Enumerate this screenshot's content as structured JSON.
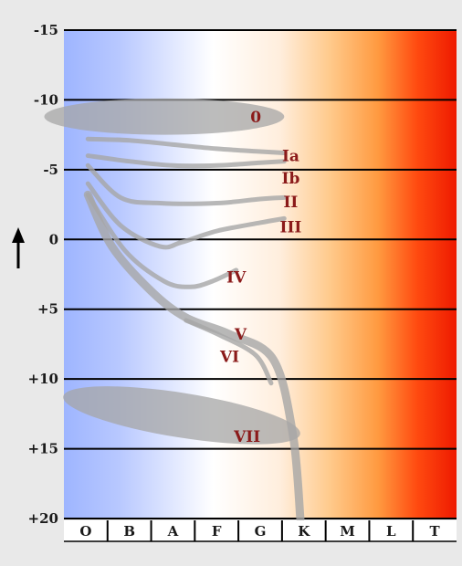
{
  "chart_data": {
    "type": "line",
    "title": "",
    "xlabel": "",
    "ylabel": "",
    "y_axis_arrow": "up",
    "x_categories": [
      "O",
      "B",
      "A",
      "F",
      "G",
      "K",
      "M",
      "L",
      "T"
    ],
    "y_ticks": [
      "-15",
      "-10",
      "-5",
      "0",
      "+5",
      "+10",
      "+15",
      "+20"
    ],
    "y_tick_values": [
      -15,
      -10,
      -5,
      0,
      5,
      10,
      15,
      20
    ],
    "ylim": [
      -15,
      20
    ],
    "y_inverted": true,
    "grid": "horizontal",
    "gradient_colors": [
      "#9eb5ff",
      "#b8c8ff",
      "#ffffff",
      "#ffeedd",
      "#ffc98a",
      "#ff9a40",
      "#ff4a10",
      "#ee1a00"
    ],
    "band_color": "#a6a6a6",
    "class_label_color": "#8b1a1a",
    "regions": [
      {
        "name": "0",
        "kind": "ellipse",
        "cx": 1.8,
        "cy": -8.8,
        "rx": 2.75,
        "ry": 1.3,
        "label_at": [
          3.9,
          -8.8
        ]
      },
      {
        "name": "VII",
        "kind": "ellipse",
        "cx": 2.2,
        "cy": 12.6,
        "rx": 2.75,
        "ry": 1.6,
        "rotate": 9,
        "label_at": [
          3.7,
          14.1
        ]
      }
    ],
    "series": [
      {
        "name": "Ia",
        "points": [
          [
            0.05,
            -7.2
          ],
          [
            1,
            -7.1
          ],
          [
            2,
            -6.8
          ],
          [
            3,
            -6.5
          ],
          [
            4,
            -6.3
          ],
          [
            4.55,
            -6.2
          ]
        ],
        "width": 5,
        "label_at": [
          4.7,
          -6.0
        ]
      },
      {
        "name": "Ib",
        "points": [
          [
            0.05,
            -6.0
          ],
          [
            1,
            -5.6
          ],
          [
            2,
            -5.3
          ],
          [
            3,
            -5.3
          ],
          [
            4,
            -5.5
          ],
          [
            4.55,
            -5.6
          ]
        ],
        "width": 5,
        "label_at": [
          4.7,
          -4.4
        ]
      },
      {
        "name": "II",
        "points": [
          [
            0.05,
            -5.3
          ],
          [
            0.8,
            -3.0
          ],
          [
            1.7,
            -2.6
          ],
          [
            3,
            -2.6
          ],
          [
            4,
            -2.9
          ],
          [
            4.55,
            -3.0
          ]
        ],
        "width": 5,
        "label_at": [
          4.7,
          -2.7
        ]
      },
      {
        "name": "III",
        "points": [
          [
            0.05,
            -4.0
          ],
          [
            0.8,
            -1.0
          ],
          [
            1.7,
            0.5
          ],
          [
            2.2,
            0.2
          ],
          [
            3,
            -0.6
          ],
          [
            4,
            -1.2
          ],
          [
            4.55,
            -1.5
          ]
        ],
        "width": 5,
        "label_at": [
          4.7,
          -0.9
        ]
      },
      {
        "name": "IV",
        "points": [
          [
            0.05,
            -3.2
          ],
          [
            0.9,
            0.8
          ],
          [
            1.8,
            3.0
          ],
          [
            2.4,
            3.4
          ],
          [
            2.9,
            3.0
          ],
          [
            3.45,
            2.2
          ]
        ],
        "width": 5,
        "label_at": [
          3.45,
          2.7
        ]
      },
      {
        "name": "V",
        "points": [
          [
            0.05,
            -3.2
          ],
          [
            0.6,
            0.5
          ],
          [
            1.5,
            3.7
          ],
          [
            2.3,
            5.6
          ],
          [
            3.3,
            6.8
          ],
          [
            4.3,
            8.6
          ],
          [
            4.75,
            14
          ],
          [
            4.92,
            20
          ]
        ],
        "width": 9,
        "label_at": [
          3.55,
          6.8
        ]
      },
      {
        "name": "VI",
        "points": [
          [
            2.3,
            5.8
          ],
          [
            3.1,
            6.9
          ],
          [
            3.9,
            8.3
          ],
          [
            4.25,
            10.3
          ]
        ],
        "width": 5,
        "label_at": [
          3.3,
          8.4
        ]
      }
    ]
  }
}
